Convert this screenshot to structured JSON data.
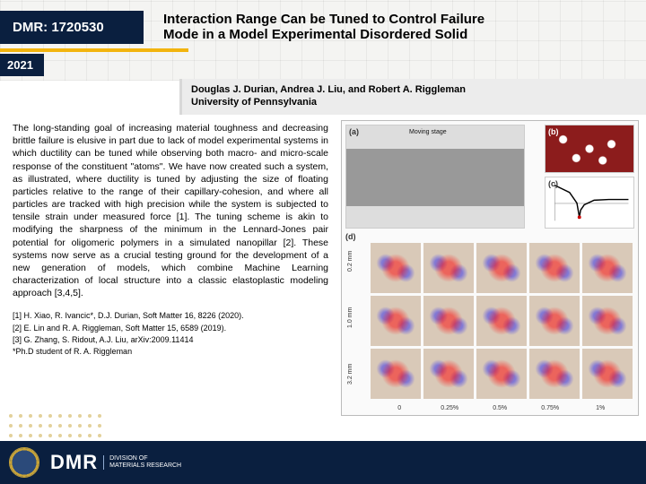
{
  "colors": {
    "navy": "#0a1f3f",
    "gold": "#f2b40e",
    "band": "#ececec",
    "fig_border": "#bbbbbb",
    "particles_bg": "#8c1c1c"
  },
  "header": {
    "award": "DMR: 1720530",
    "year": "2021",
    "title_line1": "Interaction Range Can be Tuned to Control Failure",
    "title_line2": "Mode in a Model Experimental Disordered Solid"
  },
  "authors": {
    "names": "Douglas J. Durian, Andrea J. Liu, and Robert A. Riggleman",
    "affiliation": "University of Pennsylvania"
  },
  "abstract": "The long-standing goal of increasing material toughness and decreasing brittle failure is elusive in part due to lack of model experimental systems in which ductility can be tuned while observing both macro- and micro-scale response of the constituent \"atoms\".  We have now created such a system, as illustrated, where ductility is tuned by adjusting the size of floating particles relative to the range of their capillary-cohesion, and where all particles are tracked with high precision while the system is subjected to tensile strain under measured force [1].  The tuning scheme is akin to modifying the sharpness of the minimum in the Lennard-Jones pair potential for oligomeric polymers in a simulated nanopillar [2].  These systems now serve as a crucial testing ground for the development of a new generation of models, which combine Machine Learning characterization of local structure into a classic elastoplastic modeling approach [3,4,5].",
  "references": [
    "[1] H. Xiao, R. Ivancic*, D.J. Durian, Soft Matter 16, 8226 (2020).",
    "[2] E. Lin and R. A. Riggleman, Soft Matter 15, 6589 (2019).",
    "[3] G. Zhang, S. Ridout, A.J. Liu, arXiv:2009.11414",
    "*Ph.D student of R. A. Riggleman"
  ],
  "figure": {
    "labels": {
      "a": "(a)",
      "b": "(b)",
      "c": "(c)",
      "d": "(d)"
    },
    "a_caption": "Moving stage",
    "c_curve": {
      "type": "line",
      "x": [
        0,
        0.6,
        0.9,
        1.0,
        1.05,
        1.2,
        1.6,
        2.2,
        3.0
      ],
      "y": [
        5,
        3,
        0,
        -4,
        -2,
        -0.5,
        0.8,
        1.0,
        1.0
      ],
      "xlim": [
        0,
        3
      ],
      "ylim": [
        -5,
        6
      ],
      "line_color": "#000000",
      "line_width": 1.5,
      "marker_r": 1.02,
      "marker_color": "#cc0000",
      "axis_color": "#777777"
    },
    "d_grid": {
      "row_labels": [
        "0.2 mm",
        "1.0 mm",
        "3.2 mm"
      ],
      "col_labels": [
        "0",
        "0.25%",
        "0.5%",
        "0.75%",
        "1%"
      ],
      "rows": 3,
      "cols": 5
    }
  },
  "footer": {
    "big": "DMR",
    "line1": "DIVISION OF",
    "line2": "MATERIALS RESEARCH"
  }
}
